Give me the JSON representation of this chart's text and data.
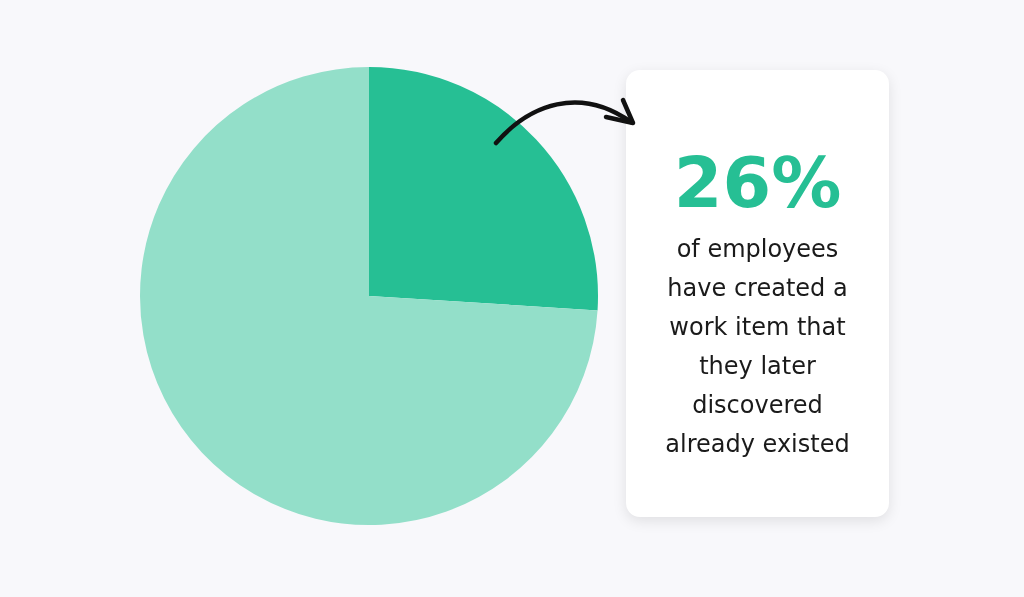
{
  "chart_data": {
    "type": "pie",
    "categories": [
      null,
      null
    ],
    "values": [
      26,
      74
    ],
    "colors": [
      "#26bf94",
      "#93dfc9"
    ],
    "value_labels": [
      "26%",
      null
    ],
    "annotations": [
      "of employees have created a work item that they later discovered already existed"
    ]
  }
}
